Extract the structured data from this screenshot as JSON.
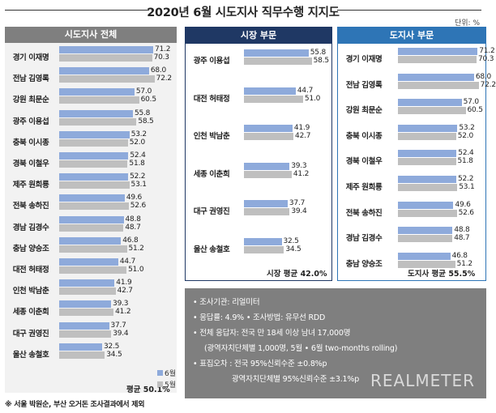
{
  "title": "2020년 6월 시도지사 직무수행 지지도",
  "unit": "단위: %",
  "legend": {
    "jun": "6월",
    "may": "5월"
  },
  "colors": {
    "jun": "#8eaadb",
    "may": "#bfbfbf",
    "panel_left": "#7f7f7f",
    "panel_mid": "#1f3864",
    "panel_right": "#2e75b6"
  },
  "chart_data": [
    {
      "type": "bar",
      "title": "시도지사 전체",
      "categories": [
        "경기 이재명",
        "전남 김영록",
        "강원 최문순",
        "광주 이용섭",
        "충북 이시종",
        "경북 이철우",
        "제주 원희룡",
        "전북 송하진",
        "경남 김경수",
        "충남 양승조",
        "대전 허태정",
        "인천 박남춘",
        "세종 이춘희",
        "대구 권영진",
        "울산 송철호"
      ],
      "series": [
        {
          "name": "6월",
          "values": [
            71.2,
            68.0,
            57.0,
            55.8,
            53.2,
            52.4,
            52.2,
            49.6,
            48.8,
            46.8,
            44.7,
            41.9,
            39.3,
            37.7,
            32.5
          ]
        },
        {
          "name": "5월",
          "values": [
            70.3,
            72.2,
            60.5,
            58.5,
            52.0,
            51.8,
            53.1,
            52.6,
            48.7,
            51.2,
            51.0,
            42.7,
            41.2,
            39.4,
            34.5
          ]
        }
      ],
      "average_label": "평균 50.1%"
    },
    {
      "type": "bar",
      "title": "시장 부문",
      "categories": [
        "광주 이용섭",
        "대전 허태정",
        "인천 박남춘",
        "세종 이춘희",
        "대구 권영진",
        "울산 송철호"
      ],
      "series": [
        {
          "name": "6월",
          "values": [
            55.8,
            44.7,
            41.9,
            39.3,
            37.7,
            32.5
          ]
        },
        {
          "name": "5월",
          "values": [
            58.5,
            51.0,
            42.7,
            41.2,
            39.4,
            34.5
          ]
        }
      ],
      "average_label": "시장 평균 42.0%"
    },
    {
      "type": "bar",
      "title": "도지사 부문",
      "categories": [
        "경기 이재명",
        "전남 김영록",
        "강원 최문순",
        "충북 이시종",
        "경북 이철우",
        "제주 원희룡",
        "전북 송하진",
        "경남 김경수",
        "충남 양승조"
      ],
      "series": [
        {
          "name": "6월",
          "values": [
            71.2,
            68.0,
            57.0,
            53.2,
            52.4,
            52.2,
            49.6,
            48.8,
            46.8
          ]
        },
        {
          "name": "5월",
          "values": [
            70.3,
            72.2,
            60.5,
            52.0,
            51.8,
            53.1,
            52.6,
            48.7,
            51.2
          ]
        }
      ],
      "average_label": "도지사 평균 55.5%"
    }
  ],
  "notes": [
    "• 조사기관: 리얼미터",
    "• 응답률: 4.9% • 조사방법: 유무선 RDD",
    "• 전체 응답자: 전국 만 18세 이상 남녀 17,000명",
    "(광역자치단체별 1,000명, 5월 • 6월 two-months rolling)",
    "• 표집오차 : 전국 95%신뢰수준 ±0.8%p",
    "광역자치단체별 95%신뢰수준 ±3.1%p"
  ],
  "brand": "REALMETER",
  "footnote": "※ 서울 박원순, 부산 오거돈 조사결과에서 제외"
}
